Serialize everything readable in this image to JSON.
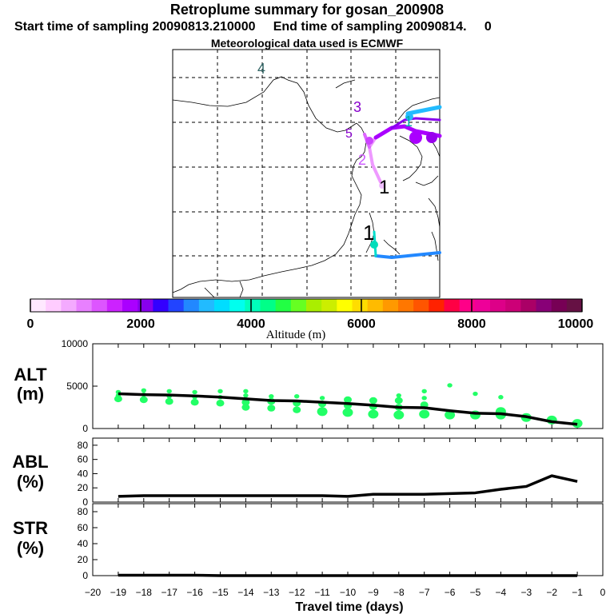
{
  "header": {
    "title": "Retroplume summary for gosan_200908",
    "start_label": "Start time of sampling 20090813.210000",
    "end_label": "End time of sampling 20090814.",
    "end_suffix": "0",
    "met_label": "Meteorological data used is ECMWF"
  },
  "colorbar": {
    "ticks": [
      "0",
      "2000",
      "4000",
      "6000",
      "8000",
      "10000"
    ],
    "label": "Altitude (m)",
    "min": 0,
    "max": 10000,
    "colors": [
      "#ffe8ff",
      "#ffccff",
      "#f4aaff",
      "#e880ff",
      "#dd55ff",
      "#cc22ff",
      "#aa00ff",
      "#8800ee",
      "#3300ff",
      "#2244ff",
      "#2288ff",
      "#22bbff",
      "#00ddff",
      "#00ffee",
      "#00ffbb",
      "#00ff88",
      "#22ff44",
      "#66ff22",
      "#aaee00",
      "#ccee00",
      "#ffff00",
      "#ffdd00",
      "#ffbb00",
      "#ff9900",
      "#ff7700",
      "#ff5500",
      "#ff2200",
      "#ff0044",
      "#ff0088",
      "#ee0099",
      "#dd0088",
      "#cc0077",
      "#aa0066",
      "#880077",
      "#770055",
      "#661144"
    ]
  },
  "map": {
    "labels": [
      {
        "text": "4",
        "color": "#336666"
      },
      {
        "text": "3",
        "color": "#8800cc"
      },
      {
        "text": "5",
        "color": "#8800cc"
      },
      {
        "text": "2",
        "color": "#cc55ff"
      },
      {
        "text": "1",
        "color": "#000000"
      },
      {
        "text": "1",
        "color": "#00aaaa"
      },
      {
        "text": "1",
        "color": "#000000"
      }
    ]
  },
  "chart_data": [
    {
      "type": "line",
      "title": "ALT (m)",
      "panel_label_top": "ALT",
      "panel_label_bottom": "(m)",
      "x": [
        -19,
        -18,
        -17,
        -16,
        -15,
        -14,
        -13,
        -12,
        -11,
        -10,
        -9,
        -8,
        -7,
        -6,
        -5,
        -4,
        -3,
        -2,
        -1
      ],
      "values": [
        4100,
        4000,
        3950,
        3850,
        3700,
        3500,
        3300,
        3250,
        3100,
        2950,
        2750,
        2500,
        2450,
        2100,
        1800,
        1750,
        1400,
        800,
        500
      ],
      "ylim": [
        0,
        10000
      ],
      "yticks": [
        "0",
        "5000",
        "10000"
      ],
      "scatter_color": "#22ff66",
      "scatter": [
        {
          "x": -19,
          "y": [
            3500,
            3900,
            4300
          ]
        },
        {
          "x": -18,
          "y": [
            3400,
            4000,
            4500
          ]
        },
        {
          "x": -17,
          "y": [
            3200,
            3800,
            4400
          ]
        },
        {
          "x": -16,
          "y": [
            3100,
            3700,
            4300
          ]
        },
        {
          "x": -15,
          "y": [
            3000,
            3700,
            4400
          ]
        },
        {
          "x": -14,
          "y": [
            2500,
            3100,
            3900,
            4400
          ]
        },
        {
          "x": -13,
          "y": [
            2400,
            3200,
            3800
          ]
        },
        {
          "x": -12,
          "y": [
            2200,
            3000,
            3800
          ]
        },
        {
          "x": -11,
          "y": [
            2000,
            2900,
            3600
          ]
        },
        {
          "x": -10,
          "y": [
            1900,
            2700,
            3400
          ]
        },
        {
          "x": -9,
          "y": [
            1700,
            2600,
            3300
          ]
        },
        {
          "x": -8,
          "y": [
            1600,
            2500,
            3300,
            3900
          ]
        },
        {
          "x": -7,
          "y": [
            1700,
            2800,
            3600,
            4400
          ]
        },
        {
          "x": -6,
          "y": [
            1600,
            5100
          ]
        },
        {
          "x": -5,
          "y": [
            1600,
            4100
          ]
        },
        {
          "x": -4,
          "y": [
            1600,
            2000,
            3700
          ]
        },
        {
          "x": -3,
          "y": [
            1300
          ]
        },
        {
          "x": -2,
          "y": [
            1000
          ]
        },
        {
          "x": -1,
          "y": [
            600
          ]
        }
      ]
    },
    {
      "type": "line",
      "title": "ABL (%)",
      "panel_label_top": "ABL",
      "panel_label_bottom": "(%)",
      "x": [
        -19,
        -18,
        -17,
        -16,
        -15,
        -14,
        -13,
        -12,
        -11,
        -10,
        -9,
        -8,
        -7,
        -6,
        -5,
        -4,
        -3,
        -2,
        -1
      ],
      "values": [
        8,
        9,
        9,
        9,
        9,
        9,
        9,
        9,
        9,
        8,
        11,
        11,
        11,
        12,
        13,
        18,
        22,
        37,
        29
      ],
      "ylim": [
        0,
        90
      ],
      "yticks": [
        "0",
        "20",
        "40",
        "60",
        "80"
      ]
    },
    {
      "type": "line",
      "title": "STR (%)",
      "panel_label_top": "STR",
      "panel_label_bottom": "(%)",
      "x": [
        -19,
        -18,
        -17,
        -16,
        -15,
        -14,
        -13,
        -12,
        -11,
        -10,
        -9,
        -8,
        -7,
        -6,
        -5,
        -4,
        -3,
        -2,
        -1
      ],
      "values": [
        0.5,
        0.5,
        0.5,
        0.5,
        0,
        0,
        0,
        0,
        0,
        0,
        0,
        0,
        0,
        0,
        0,
        0,
        0,
        0,
        0
      ],
      "ylim": [
        0,
        90
      ],
      "yticks": [
        "0",
        "20",
        "40",
        "60",
        "80"
      ],
      "xlabel": "Travel time (days)",
      "xticks": [
        "−20",
        "−19",
        "−18",
        "−17",
        "−16",
        "−15",
        "−14",
        "−13",
        "−12",
        "−11",
        "−10",
        "−9",
        "−8",
        "−7",
        "−6",
        "−5",
        "−4",
        "−3",
        "−2",
        "−1",
        "0"
      ]
    }
  ]
}
